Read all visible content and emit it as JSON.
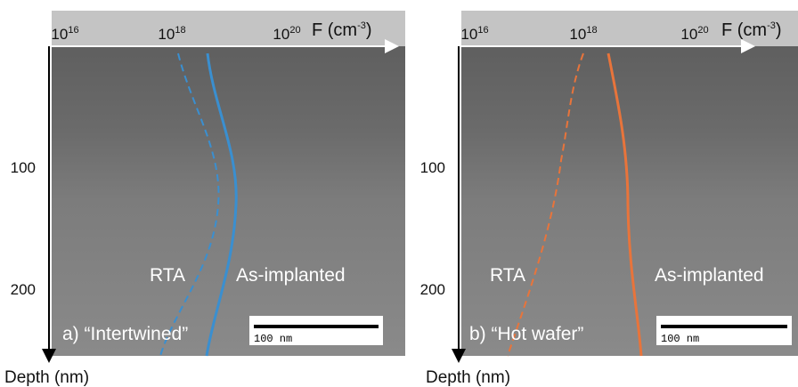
{
  "panels": [
    {
      "x_ticks": [
        {
          "base": "10",
          "exp": "16"
        },
        {
          "base": "10",
          "exp": "18"
        },
        {
          "base": "10",
          "exp": "20"
        }
      ],
      "x_label": {
        "text": "F (cm",
        "exp": "-3",
        "close": ")"
      },
      "y_ticks": [
        "100",
        "200"
      ],
      "y_label": "Depth (nm)",
      "curve_labels": [
        "RTA",
        "As-implanted"
      ],
      "caption": "a) “Intertwined”",
      "scale_bar": "100 nm"
    },
    {
      "x_ticks": [
        {
          "base": "10",
          "exp": "16"
        },
        {
          "base": "10",
          "exp": "18"
        },
        {
          "base": "10",
          "exp": "20"
        }
      ],
      "x_label": {
        "text": "F (cm",
        "exp": "-3",
        "close": ")"
      },
      "y_ticks": [
        "100",
        "200"
      ],
      "y_label": "Depth (nm)",
      "curve_labels": [
        "RTA",
        "As-implanted"
      ],
      "caption": "b) “Hot wafer”",
      "scale_bar": "100 nm"
    }
  ]
}
